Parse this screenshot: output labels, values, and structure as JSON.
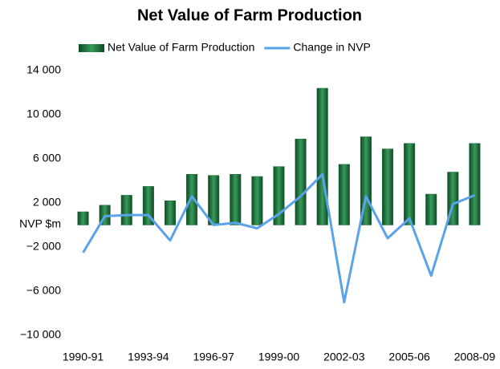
{
  "chart_data": {
    "type": "bar_line",
    "title": "Net Value of Farm Production",
    "y_label": "NVP $m",
    "categories": [
      "1990-91",
      null,
      null,
      "1993-94",
      null,
      null,
      "1996-97",
      null,
      null,
      "1999-00",
      null,
      null,
      "2002-03",
      null,
      null,
      "2005-06",
      null,
      null,
      "2008-09"
    ],
    "series": [
      {
        "name": "Net Value of Farm Production",
        "type": "bar",
        "color": "#1f6e3c",
        "values": [
          1200,
          1800,
          2700,
          3500,
          2200,
          4600,
          4500,
          4600,
          4400,
          5300,
          7800,
          12400,
          5500,
          8000,
          6900,
          7400,
          2800,
          4800,
          7400
        ]
      },
      {
        "name": "Change in NVP",
        "type": "line",
        "color": "#5aa2ea",
        "values": [
          -2500,
          800,
          900,
          900,
          -1400,
          2600,
          0,
          200,
          -300,
          1000,
          2600,
          4600,
          -7000,
          2600,
          -1200,
          600,
          -4600,
          1900,
          2700
        ]
      }
    ],
    "ylim": [
      -10000,
      14000
    ],
    "yticks": [
      {
        "value": -10000,
        "label": "−10 000"
      },
      {
        "value": -6000,
        "label": "−6 000"
      },
      {
        "value": -2000,
        "label": "−2 000"
      },
      {
        "value": 2000,
        "label": "2 000"
      },
      {
        "value": 6000,
        "label": "6 000"
      },
      {
        "value": 10000,
        "label": "10 000"
      },
      {
        "value": 14000,
        "label": "14 000"
      }
    ],
    "legend": "top"
  }
}
